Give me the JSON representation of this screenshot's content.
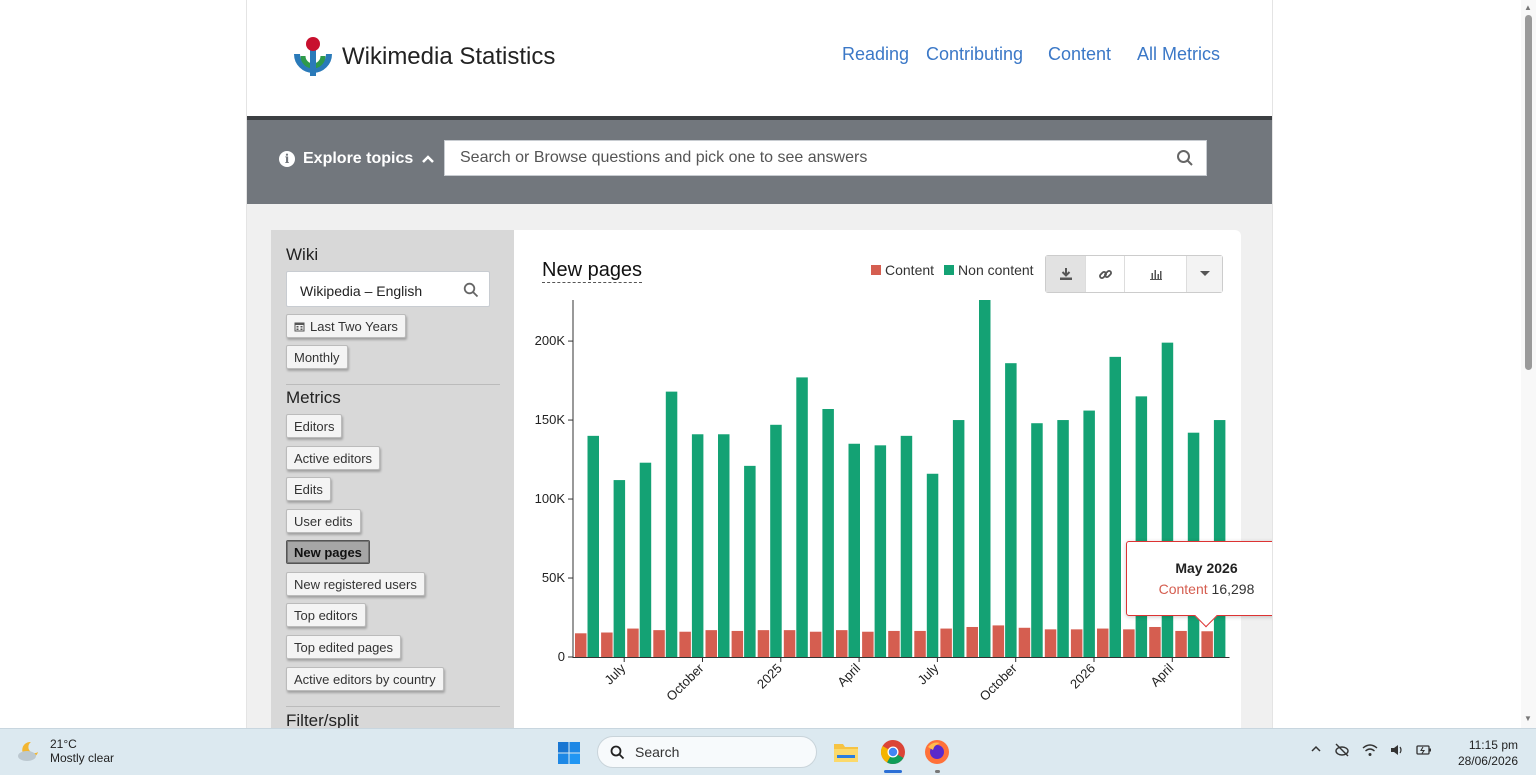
{
  "header": {
    "brand": "Wikimedia Statistics",
    "nav": [
      {
        "label": "Reading",
        "name": "nav-reading"
      },
      {
        "label": "Contributing",
        "name": "nav-contributing"
      },
      {
        "label": "Content",
        "name": "nav-content"
      },
      {
        "label": "All Metrics",
        "name": "nav-all-metrics"
      }
    ]
  },
  "topics": {
    "explore_label": "Explore topics",
    "search_placeholder": "Search or Browse questions and pick one to see answers"
  },
  "sidebar": {
    "wiki_heading": "Wiki",
    "wiki_value": "Wikipedia – English",
    "time_range": "Last Two Years",
    "granularity": "Monthly",
    "metrics_heading": "Metrics",
    "metrics": [
      "Editors",
      "Active editors",
      "Edits",
      "User edits",
      "New pages",
      "New registered users",
      "Top editors",
      "Top edited pages",
      "Active editors by country"
    ],
    "active_metric": "New pages",
    "filter_heading": "Filter/split"
  },
  "chart": {
    "title": "New pages",
    "colors": {
      "content": "#d55e50",
      "non_content": "#14a274"
    },
    "tooltip": {
      "title": "May 2026",
      "series": "Content",
      "value": "16,298"
    }
  },
  "chart_data": {
    "type": "bar",
    "series": [
      {
        "name": "Content",
        "values": [
          15000,
          15500,
          18000,
          17000,
          16000,
          17000,
          16500,
          17000,
          17000,
          16000,
          17000,
          16000,
          16500,
          16500,
          18000,
          19000,
          20000,
          18500,
          17500,
          17500,
          18000,
          17500,
          19000,
          16500,
          16298
        ]
      },
      {
        "name": "Non content",
        "values": [
          140000,
          112000,
          123000,
          168000,
          141000,
          141000,
          121000,
          147000,
          177000,
          157000,
          135000,
          134000,
          140000,
          116000,
          150000,
          226000,
          186000,
          148000,
          150000,
          156000,
          190000,
          165000,
          199000,
          142000,
          150000
        ]
      }
    ],
    "x_tick_labels": [
      "July",
      "October",
      "2025",
      "April",
      "July",
      "October",
      "2026",
      "April"
    ],
    "y_tick_labels": [
      "0",
      "50K",
      "100K",
      "150K",
      "200K"
    ],
    "ylim": [
      0,
      226000
    ],
    "legend_position": "top-right"
  },
  "taskbar": {
    "temperature": "21°C",
    "weather": "Mostly clear",
    "search_label": "Search",
    "time": "11:15 pm",
    "date": "28/06/2026"
  }
}
